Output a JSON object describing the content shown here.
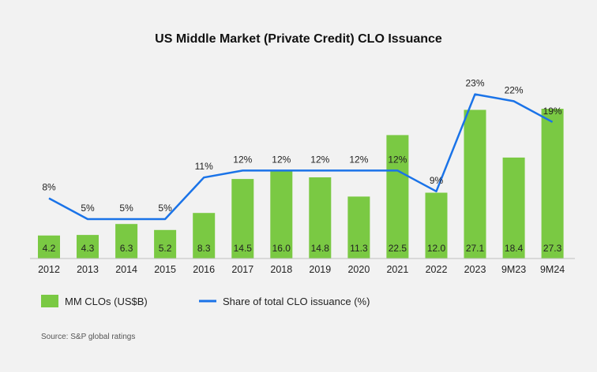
{
  "chart_data": {
    "type": "bar",
    "title": "US Middle Market (Private Credit) CLO Issuance",
    "categories": [
      "2012",
      "2013",
      "2014",
      "2015",
      "2016",
      "2017",
      "2018",
      "2019",
      "2020",
      "2021",
      "2022",
      "2023",
      "9M23",
      "9M24"
    ],
    "series": [
      {
        "name": "MM CLOs (US$B)",
        "type": "bar",
        "color": "#7ac943",
        "values": [
          4.2,
          4.3,
          6.3,
          5.2,
          8.3,
          14.5,
          16.0,
          14.8,
          11.3,
          22.5,
          12.0,
          27.1,
          18.4,
          27.3
        ],
        "labels": [
          "4.2",
          "4.3",
          "6.3",
          "5.2",
          "8.3",
          "14.5",
          "16.0",
          "14.8",
          "11.3",
          "22.5",
          "12.0",
          "27.1",
          "18.4",
          "27.3"
        ]
      },
      {
        "name": "Share of total CLO issuance (%)",
        "type": "line",
        "color": "#1a73e8",
        "values": [
          8,
          5,
          5,
          5,
          11,
          12,
          12,
          12,
          12,
          12,
          9,
          23,
          22,
          19
        ],
        "labels": [
          "8%",
          "5%",
          "5%",
          "5%",
          "11%",
          "12%",
          "12%",
          "12%",
          "12%",
          "12%",
          "9%",
          "23%",
          "22%",
          "19%"
        ]
      }
    ],
    "ylim_bars": [
      0,
      28
    ],
    "ylim_line": [
      0,
      25
    ],
    "legend_position": "bottom-left",
    "xlabel": "",
    "ylabel": ""
  },
  "source": "Source: S&P global ratings"
}
